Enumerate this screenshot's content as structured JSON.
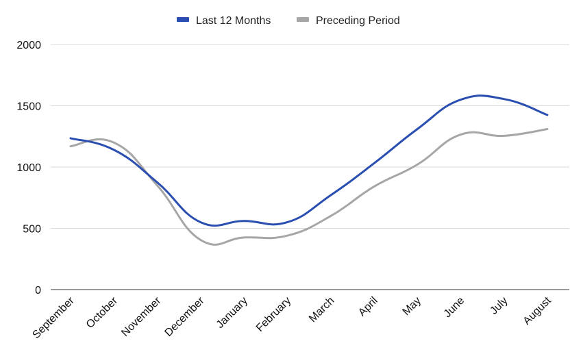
{
  "chart_data": {
    "type": "line",
    "categories": [
      "September",
      "October",
      "November",
      "December",
      "January",
      "February",
      "March",
      "April",
      "May",
      "June",
      "July",
      "August"
    ],
    "series": [
      {
        "name": "Last 12 Months",
        "color": "#2a4fb0",
        "values": [
          1235,
          1140,
          875,
          550,
          560,
          550,
          770,
          1030,
          1310,
          1550,
          1555,
          1425
        ]
      },
      {
        "name": "Preceding Period",
        "color": "#a6a6a6",
        "values": [
          1170,
          1200,
          850,
          405,
          425,
          440,
          600,
          840,
          1020,
          1265,
          1255,
          1310
        ]
      }
    ],
    "yticks": [
      0,
      500,
      1000,
      1500,
      2000
    ],
    "ylim": [
      0,
      2000
    ],
    "grid": true,
    "legend_position": "top-center",
    "title": "",
    "xlabel": "",
    "ylabel": ""
  }
}
